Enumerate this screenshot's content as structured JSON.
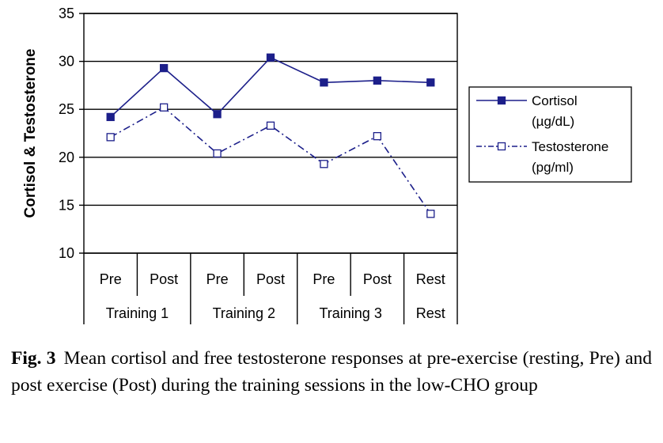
{
  "chart_data": {
    "type": "line",
    "title": "",
    "ylabel": "Cortisol & Testosterone",
    "xlabel": "",
    "ylim": [
      10,
      35
    ],
    "yticks": [
      10,
      15,
      20,
      25,
      30,
      35
    ],
    "grid": true,
    "categories": [
      "Pre",
      "Post",
      "Pre",
      "Post",
      "Pre",
      "Post",
      "Rest"
    ],
    "groups": [
      {
        "label": "Training 1",
        "span": 2
      },
      {
        "label": "Training 2",
        "span": 2
      },
      {
        "label": "Training 3",
        "span": 2
      },
      {
        "label": "Rest",
        "span": 1
      }
    ],
    "legend_position": "right",
    "series": [
      {
        "name": "Cortisol",
        "unit": "(µg/dL)",
        "values": [
          24.2,
          29.3,
          24.5,
          30.4,
          27.8,
          28.0,
          27.8
        ],
        "color": "#1c1f8a",
        "style": "solid",
        "marker": "filled-square"
      },
      {
        "name": "Testosterone",
        "unit": "(pg/ml)",
        "values": [
          22.1,
          25.2,
          20.4,
          23.3,
          19.3,
          22.2,
          14.1
        ],
        "color": "#1c1f8a",
        "style": "dash-dot",
        "marker": "open-square"
      }
    ]
  },
  "caption": {
    "label": "Fig. 3",
    "text": "Mean cortisol and free testosterone responses at pre-exercise (resting, Pre) and post exercise (Post) during the training sessions in the low-CHO group"
  }
}
